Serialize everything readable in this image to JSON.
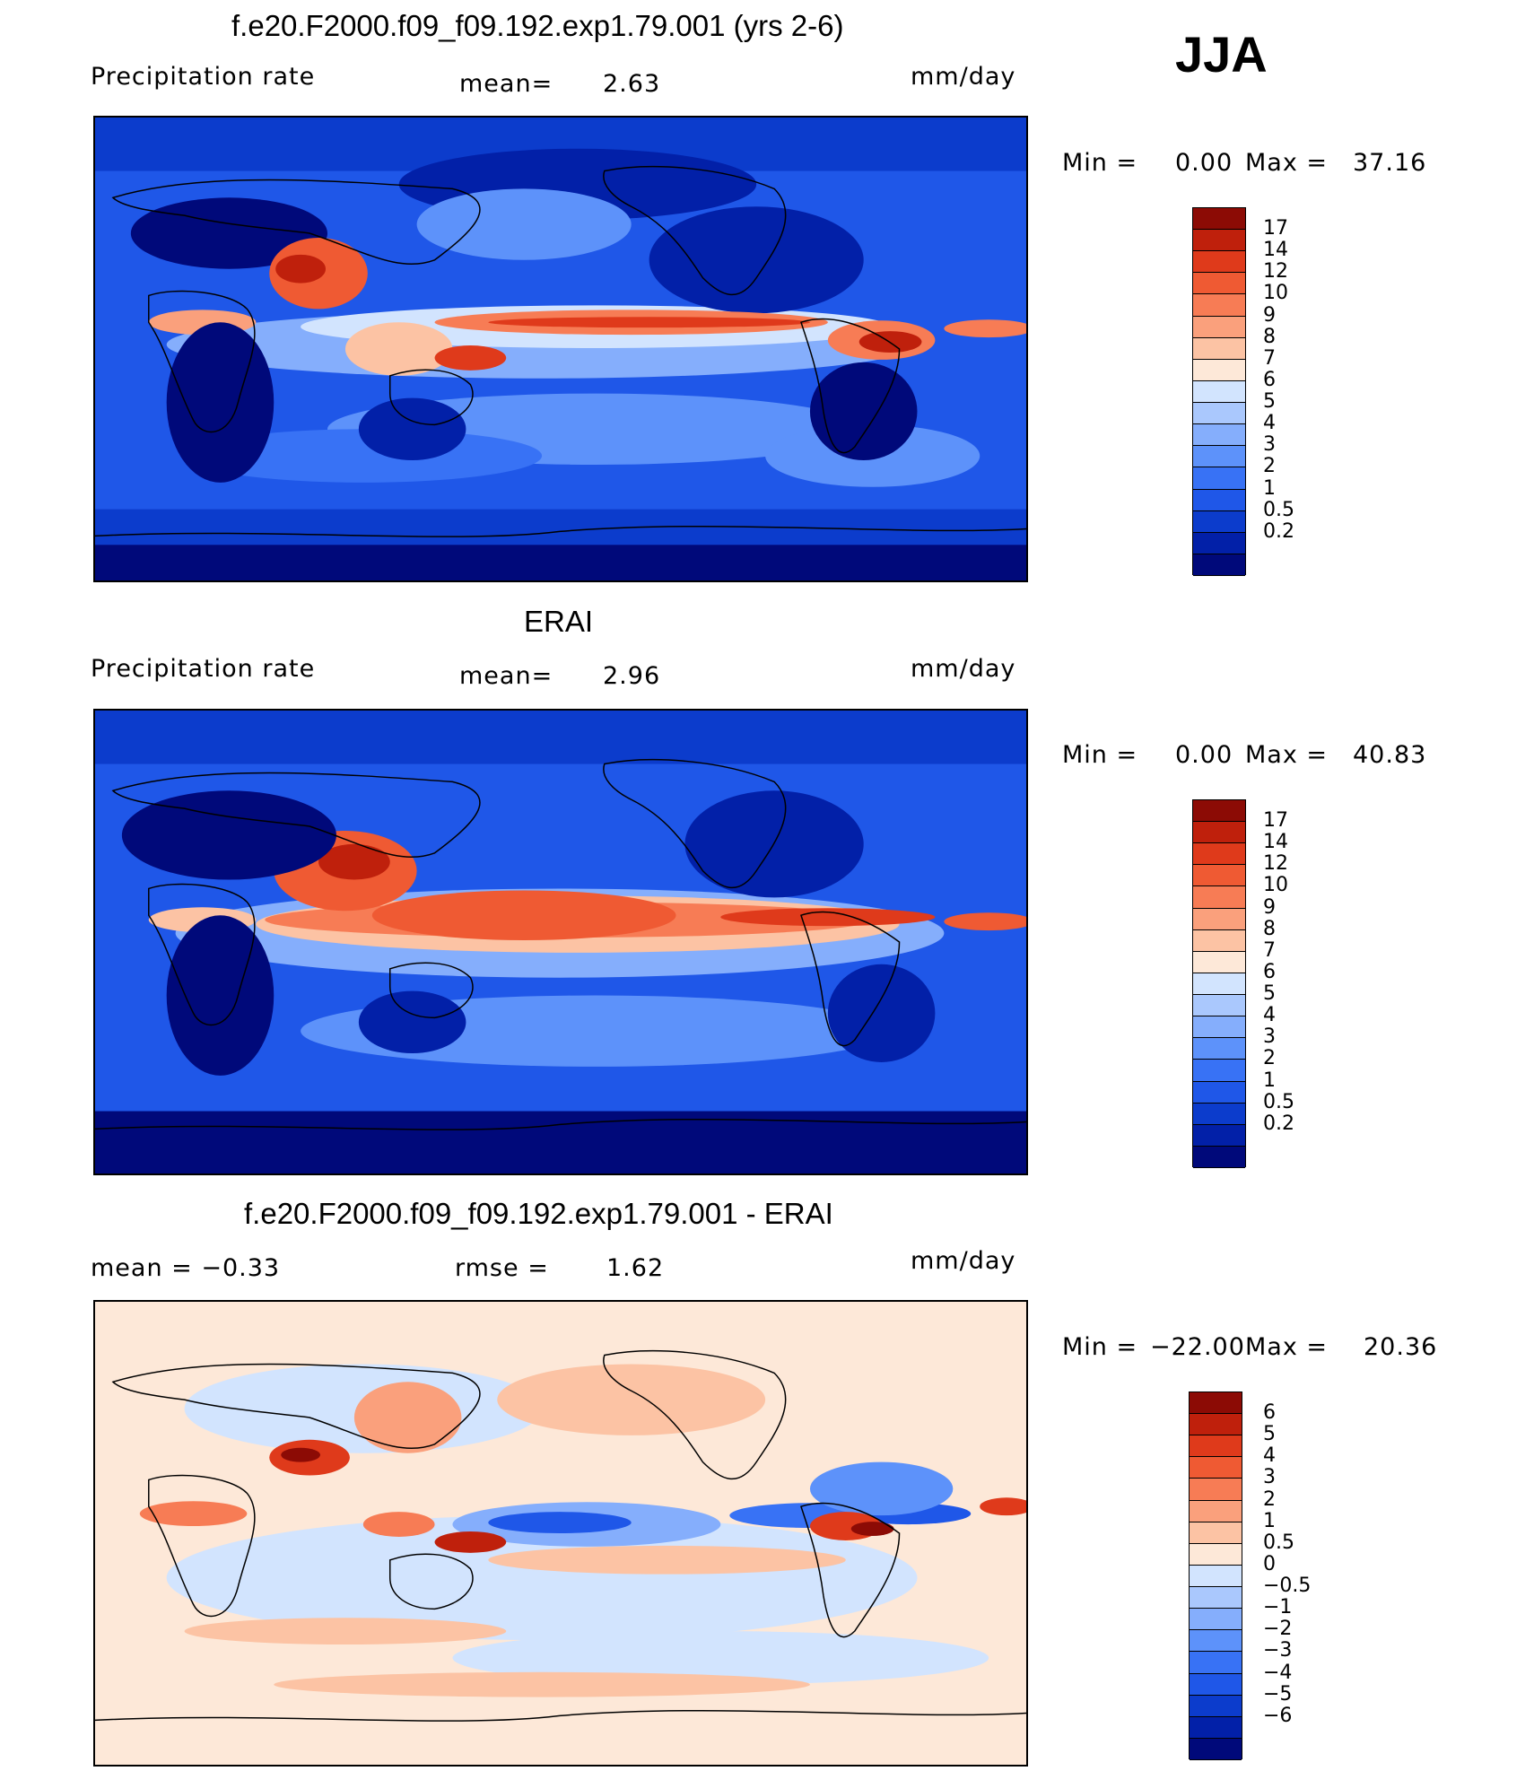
{
  "season": "JJA",
  "colors": {
    "precip": [
      "#00097a",
      "#0220a8",
      "#0c3ccc",
      "#1f57e8",
      "#3872f5",
      "#5d92fa",
      "#85aefc",
      "#aac8fd",
      "#d2e4fe",
      "#fde8d8",
      "#fcc3a4",
      "#faa07c",
      "#f77c55",
      "#ef5a33",
      "#df3a1b",
      "#bf200c",
      "#8c0b05"
    ],
    "diff": [
      "#00097a",
      "#0220a8",
      "#0c3ccc",
      "#1f57e8",
      "#3872f5",
      "#5d92fa",
      "#85aefc",
      "#aac8fd",
      "#d2e4fe",
      "#fde8d8",
      "#fcc3a4",
      "#faa07c",
      "#f77c55",
      "#ef5a33",
      "#df3a1b",
      "#bf200c",
      "#8c0b05"
    ]
  },
  "panels": [
    {
      "title": "f.e20.F2000.f09_f09.192.exp1.79.001 (yrs 2-6)",
      "left_label": "Precipitation  rate",
      "mean_label": "mean=",
      "mean_value": "2.63",
      "units": "mm/day",
      "min_label": "Min  =",
      "min_value": "0.00",
      "max_label": "Max  =",
      "max_value": "37.16",
      "levels": [
        "17",
        "14",
        "12",
        "10",
        "9",
        "8",
        "7",
        "6",
        "5",
        "4",
        "3",
        "2",
        "1",
        "0.5",
        "0.2"
      ]
    },
    {
      "title": "ERAI",
      "left_label": "Precipitation  rate",
      "mean_label": "mean=",
      "mean_value": "2.96",
      "units": "mm/day",
      "min_label": "Min  =",
      "min_value": "0.00",
      "max_label": "Max  =",
      "max_value": "40.83",
      "levels": [
        "17",
        "14",
        "12",
        "10",
        "9",
        "8",
        "7",
        "6",
        "5",
        "4",
        "3",
        "2",
        "1",
        "0.5",
        "0.2"
      ]
    },
    {
      "title": "f.e20.F2000.f09_f09.192.exp1.79.001 - ERAI",
      "left_label": "mean  =   −0.33",
      "mean_label": "rmse  =",
      "mean_value": "1.62",
      "units": "mm/day",
      "min_label": "Min  =",
      "min_value": "−22.00",
      "max_label": "Max  =",
      "max_value": "20.36",
      "levels": [
        "6",
        "5",
        "4",
        "3",
        "2",
        "1",
        "0.5",
        "0",
        "−0.5",
        "−1",
        "−2",
        "−3",
        "−4",
        "−5",
        "−6"
      ]
    }
  ]
}
